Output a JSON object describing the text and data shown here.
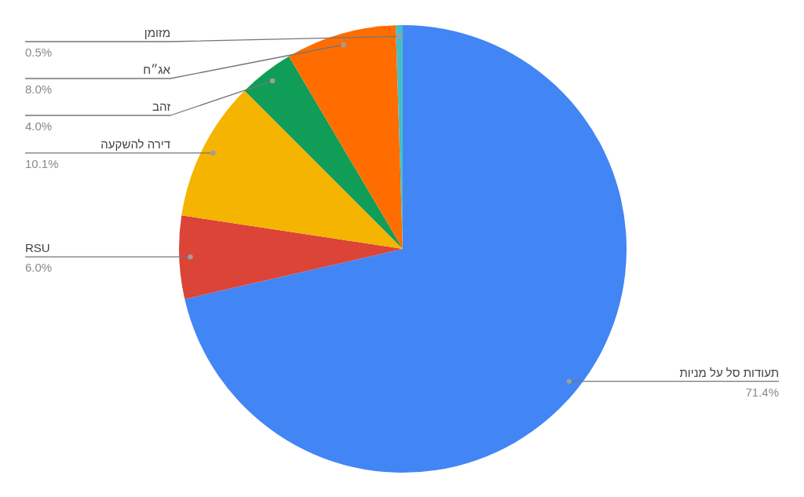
{
  "chart_data": {
    "type": "pie",
    "categories": [
      "תעודות סל על מניות",
      "RSU",
      "דירה להשקעה",
      "זהב",
      "אג״ח",
      "מזומן"
    ],
    "values": [
      71.4,
      6.0,
      10.1,
      4.0,
      8.0,
      0.5
    ],
    "value_labels": [
      "71.4%",
      "6.0%",
      "10.1%",
      "4.0%",
      "8.0%",
      "0.5%"
    ],
    "colors": [
      "#4285f4",
      "#db4437",
      "#f4b400",
      "#0f9d58",
      "#ff6d01",
      "#46bdc6"
    ]
  }
}
